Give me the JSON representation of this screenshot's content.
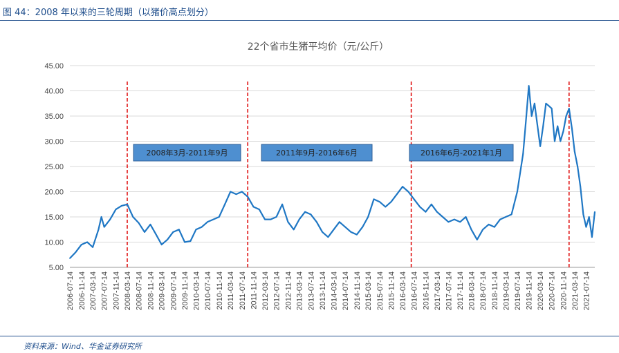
{
  "caption": "图 44：2008 年以来的三轮周期（以猪价高点划分）",
  "source": "资料来源：Wind、华金证券研究所",
  "chart_data": {
    "type": "line",
    "title": "22个省市生猪平均价（元/公斤）",
    "ylim": [
      5,
      45
    ],
    "y_ticks": [
      "5.00",
      "10.00",
      "15.00",
      "20.00",
      "25.00",
      "30.00",
      "35.00",
      "40.00",
      "45.00"
    ],
    "x_tick_labels": [
      "2006-07-14",
      "2006-11-14",
      "2007-03-14",
      "2007-07-14",
      "2007-11-14",
      "2008-03-14",
      "2008-07-14",
      "2008-11-14",
      "2009-03-14",
      "2009-07-14",
      "2009-11-14",
      "2010-03-14",
      "2010-07-14",
      "2010-11-14",
      "2011-03-14",
      "2011-07-14",
      "2011-11-14",
      "2012-03-14",
      "2012-07-14",
      "2012-11-14",
      "2013-03-14",
      "2013-07-14",
      "2013-11-14",
      "2014-03-14",
      "2014-07-14",
      "2014-11-14",
      "2015-03-14",
      "2015-07-14",
      "2015-11-14",
      "2016-03-14",
      "2016-07-14",
      "2016-11-14",
      "2017-03-14",
      "2017-07-14",
      "2017-11-14",
      "2018-03-14",
      "2018-07-14",
      "2018-11-14",
      "2019-03-14",
      "2019-07-14",
      "2019-11-14",
      "2020-03-14",
      "2020-07-14",
      "2020-11-14",
      "2021-03-14",
      "2021-07-14"
    ],
    "grid": "horizontal",
    "series_color": "#1f77c4",
    "series": [
      {
        "x": [
          "2006-07-14",
          "2006-09-14",
          "2006-11-14",
          "2007-01-14",
          "2007-03-14",
          "2007-05-14",
          "2007-06-14",
          "2007-07-14",
          "2007-09-14",
          "2007-11-14",
          "2008-01-14",
          "2008-03-14",
          "2008-05-14",
          "2008-07-14",
          "2008-09-14",
          "2008-11-14",
          "2009-01-14",
          "2009-03-14",
          "2009-05-14",
          "2009-07-14",
          "2009-09-14",
          "2009-11-14",
          "2010-01-14",
          "2010-03-14",
          "2010-05-14",
          "2010-07-14",
          "2010-09-14",
          "2010-11-14",
          "2011-01-14",
          "2011-03-14",
          "2011-05-14",
          "2011-07-14",
          "2011-09-14",
          "2011-11-14",
          "2012-01-14",
          "2012-03-14",
          "2012-05-14",
          "2012-07-14",
          "2012-09-14",
          "2012-11-14",
          "2013-01-14",
          "2013-03-14",
          "2013-05-14",
          "2013-07-14",
          "2013-09-14",
          "2013-11-14",
          "2014-01-14",
          "2014-03-14",
          "2014-05-14",
          "2014-07-14",
          "2014-09-14",
          "2014-11-14",
          "2015-01-14",
          "2015-03-14",
          "2015-05-14",
          "2015-07-14",
          "2015-09-14",
          "2015-11-14",
          "2016-01-14",
          "2016-03-14",
          "2016-05-14",
          "2016-07-14",
          "2016-09-14",
          "2016-11-14",
          "2017-01-14",
          "2017-03-14",
          "2017-05-14",
          "2017-07-14",
          "2017-09-14",
          "2017-11-14",
          "2018-01-14",
          "2018-03-14",
          "2018-05-14",
          "2018-07-14",
          "2018-09-14",
          "2018-11-14",
          "2019-01-14",
          "2019-03-14",
          "2019-05-14",
          "2019-07-14",
          "2019-09-14",
          "2019-10-14",
          "2019-11-14",
          "2019-12-14",
          "2020-01-14",
          "2020-02-14",
          "2020-03-14",
          "2020-04-14",
          "2020-05-14",
          "2020-06-14",
          "2020-07-14",
          "2020-08-14",
          "2020-09-14",
          "2020-10-14",
          "2020-11-14",
          "2020-12-14",
          "2021-01-14",
          "2021-02-14",
          "2021-03-14",
          "2021-04-14",
          "2021-05-14",
          "2021-06-14",
          "2021-07-14",
          "2021-08-14",
          "2021-09-14",
          "2021-10-14"
        ],
        "y": [
          6.8,
          8.0,
          9.5,
          10.0,
          9.0,
          12.5,
          15.0,
          13.0,
          14.5,
          16.5,
          17.2,
          17.5,
          15.0,
          13.8,
          12.0,
          13.5,
          11.5,
          9.5,
          10.5,
          12.0,
          12.5,
          10.0,
          10.2,
          12.5,
          13.0,
          14.0,
          14.5,
          15.0,
          17.5,
          20.0,
          19.5,
          20.0,
          19.0,
          17.0,
          16.5,
          14.5,
          14.5,
          15.0,
          17.5,
          14.0,
          12.5,
          14.5,
          16.0,
          15.5,
          14.0,
          12.0,
          11.0,
          12.5,
          14.0,
          13.0,
          12.0,
          11.5,
          13.0,
          15.0,
          18.5,
          18.0,
          17.0,
          18.0,
          19.5,
          21.0,
          20.0,
          18.5,
          17.0,
          16.0,
          17.5,
          16.0,
          15.0,
          14.0,
          14.5,
          14.0,
          15.0,
          12.5,
          10.5,
          12.5,
          13.5,
          13.0,
          14.5,
          15.0,
          15.5,
          20.0,
          27.5,
          34.0,
          41.0,
          35.0,
          37.5,
          33.0,
          29.0,
          33.0,
          37.5,
          37.0,
          36.5,
          30.0,
          33.0,
          30.0,
          32.0,
          35.0,
          36.5,
          32.5,
          28.0,
          25.0,
          21.0,
          15.5,
          13.0,
          15.0,
          11.0,
          16.0
        ]
      }
    ],
    "periods": [
      {
        "label": "2008年3月-2011年9月"
      },
      {
        "label": "2011年9月-2016年6月"
      },
      {
        "label": "2016年6月-2021年1月"
      }
    ],
    "dividers": [
      "2008-03-14",
      "2011-09-14",
      "2016-06-14",
      "2021-01-14"
    ]
  }
}
